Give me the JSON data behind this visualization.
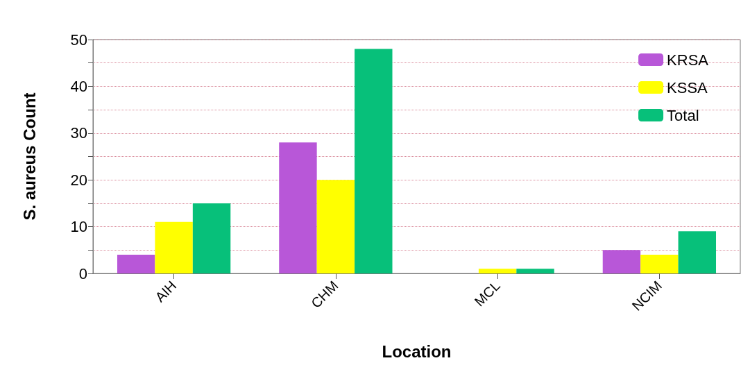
{
  "chart_data": {
    "type": "bar",
    "xlabel": "Location",
    "ylabel": "S. aureus Count",
    "categories": [
      "AIH",
      "CHM",
      "MCL",
      "NCIM"
    ],
    "series": [
      {
        "name": "KRSA",
        "color": "#b857d8",
        "values": [
          4,
          28,
          0,
          5
        ]
      },
      {
        "name": "KSSA",
        "color": "#ffff00",
        "values": [
          11,
          20,
          1,
          4
        ]
      },
      {
        "name": "Total",
        "color": "#07c07a",
        "values": [
          15,
          48,
          1,
          9
        ]
      }
    ],
    "ylim": [
      0,
      50
    ],
    "yticks": [
      0,
      {
        "value": 5,
        "label": null
      },
      10,
      {
        "value": 15,
        "label": null
      },
      20,
      {
        "value": 25,
        "label": null
      },
      30,
      {
        "value": 35,
        "label": null
      },
      40,
      {
        "value": 45,
        "label": null
      },
      50
    ],
    "grid": "y",
    "legend": "top right"
  }
}
